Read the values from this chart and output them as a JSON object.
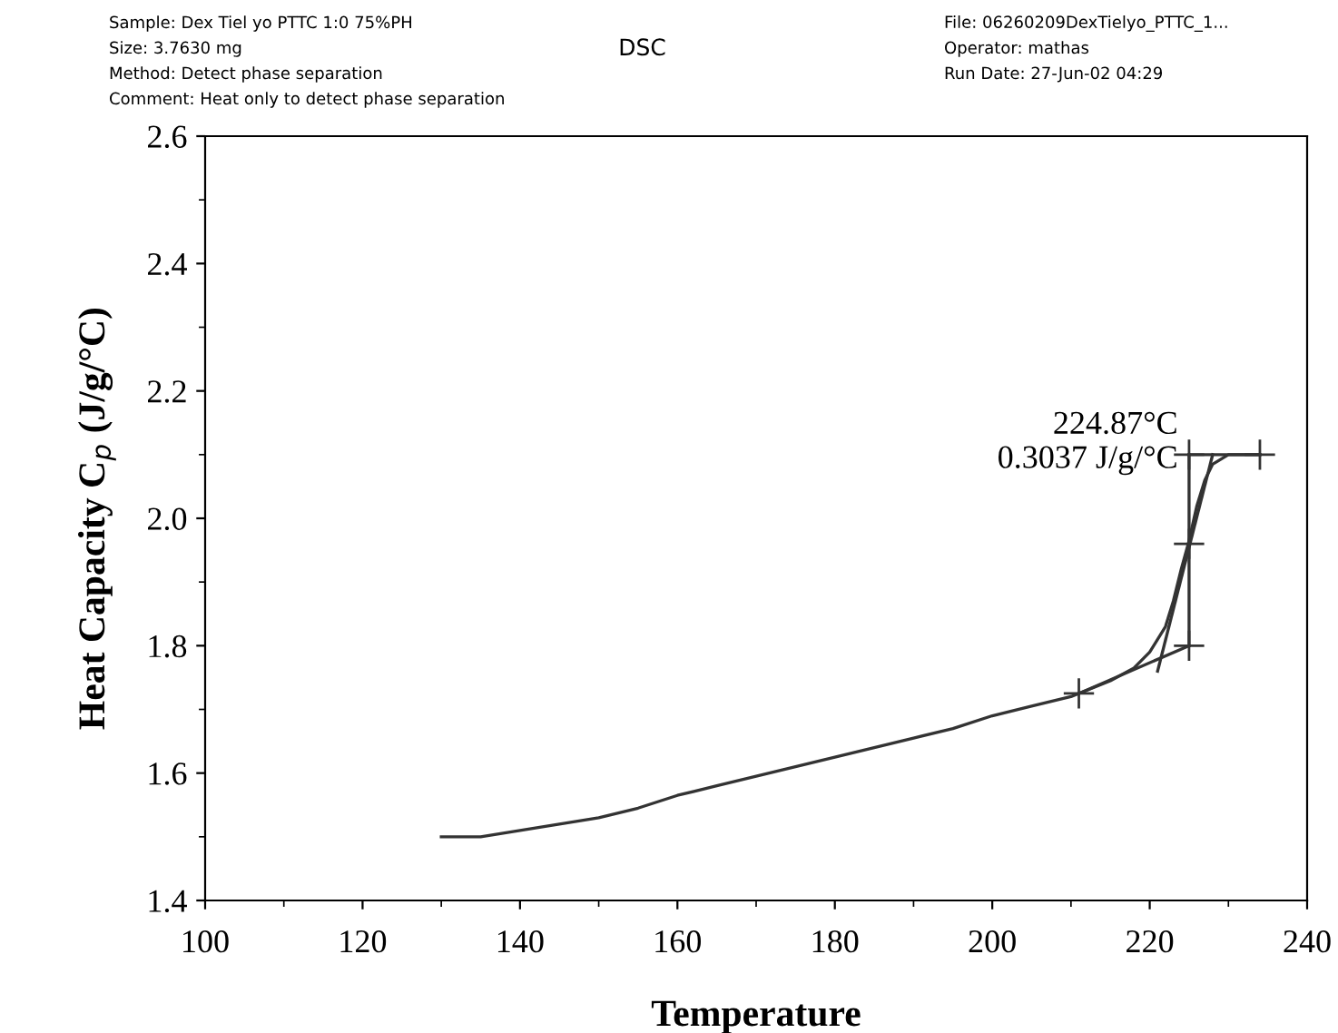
{
  "chart_data": {
    "type": "line",
    "title": "DSC",
    "xlabel": "Temperature",
    "ylabel": "Heat Capacity C$_{p}$ (J/g/°C)",
    "xlim": [
      100,
      240
    ],
    "xticks": [
      100,
      120,
      140,
      160,
      180,
      200,
      220,
      240
    ],
    "ylim": [
      1.4,
      2.6
    ],
    "yticks": [
      {
        "value": 1.4,
        "label": "1.4"
      },
      {
        "value": 1.6,
        "label": "1.6"
      },
      {
        "value": 1.8,
        "label": "1.8"
      },
      {
        "value": 2.0,
        "label": "2.0"
      },
      {
        "value": 2.2,
        "label": "2.2"
      },
      {
        "value": 2.4,
        "label": "2.4"
      },
      {
        "value": 2.6,
        "label": "2.6"
      }
    ],
    "grid": false,
    "legend": false,
    "series": [
      {
        "color": "#333333",
        "x": [
          130,
          135,
          140,
          145,
          150,
          155,
          160,
          165,
          170,
          175,
          180,
          185,
          190,
          195,
          200,
          205,
          210,
          215,
          218,
          220,
          222,
          223,
          224,
          224.9,
          226,
          227,
          228,
          230,
          232,
          234
        ],
        "values": [
          1.5,
          1.5,
          1.51,
          1.52,
          1.53,
          1.545,
          1.565,
          1.58,
          1.595,
          1.61,
          1.625,
          1.64,
          1.655,
          1.67,
          1.69,
          1.705,
          1.72,
          1.745,
          1.765,
          1.79,
          1.83,
          1.87,
          1.92,
          1.96,
          2.02,
          2.06,
          2.085,
          2.1,
          2.1,
          2.1
        ]
      },
      {
        "color": "#333333",
        "x": [
          211,
          225
        ],
        "values": [
          1.725,
          1.8
        ]
      },
      {
        "color": "#333333",
        "x": [
          225,
          225
        ],
        "values": [
          1.8,
          2.1
        ]
      },
      {
        "color": "#333333",
        "x": [
          225,
          234
        ],
        "values": [
          2.1,
          2.1
        ]
      },
      {
        "color": "#333333",
        "x": [
          221,
          228
        ],
        "values": [
          1.76,
          2.1
        ]
      },
      {
        "type": "scatter",
        "marker": "cross",
        "color": "#333333",
        "x": [
          211,
          225,
          225,
          225,
          234
        ],
        "values": [
          1.725,
          1.8,
          1.96,
          2.1,
          2.1
        ]
      }
    ],
    "annotations": [
      "Sample: Dex Tiel yo PTTC 1:0 75%PH",
      "Size: 3.7630 mg",
      "Method: Detect phase separation",
      "Comment: Heat only to detect phase separation",
      "File: 06260209DexTielyo_PTTC_1...",
      "Operator: mathas",
      "Run Date: 27-Jun-02 04:29",
      {
        "text": "224.87°C\n0.3037 J/g/°C",
        "x": 224.87,
        "y": 1.96
      }
    ]
  }
}
